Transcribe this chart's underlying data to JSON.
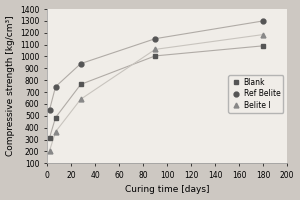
{
  "series": [
    {
      "label": "Blank",
      "x": [
        2,
        7,
        28,
        90,
        180
      ],
      "y": [
        315,
        485,
        765,
        1005,
        1090
      ],
      "line_color": "#b0aba6",
      "marker_color": "#555555",
      "marker": "s",
      "linewidth": 0.8,
      "markersize": 3.5
    },
    {
      "label": "Ref Belite",
      "x": [
        2,
        7,
        28,
        90,
        180
      ],
      "y": [
        550,
        745,
        940,
        1150,
        1300
      ],
      "line_color": "#b0aba6",
      "marker_color": "#555555",
      "marker": "o",
      "linewidth": 0.8,
      "markersize": 3.5
    },
    {
      "label": "Belite I",
      "x": [
        2,
        7,
        28,
        90,
        180
      ],
      "y": [
        205,
        365,
        640,
        1060,
        1185
      ],
      "line_color": "#c8c4be",
      "marker_color": "#888888",
      "marker": "^",
      "linewidth": 0.8,
      "markersize": 3.5
    }
  ],
  "xlabel": "Curing time [days]",
  "ylabel": "Compressive strength [kg/cm³]",
  "xlim": [
    0,
    200
  ],
  "ylim": [
    100,
    1400
  ],
  "xticks": [
    0,
    20,
    40,
    60,
    80,
    100,
    120,
    140,
    160,
    180,
    200
  ],
  "yticks": [
    100,
    200,
    300,
    400,
    500,
    600,
    700,
    800,
    900,
    1000,
    1100,
    1200,
    1300,
    1400
  ],
  "background_color": "#cdc8c2",
  "plot_bg_color": "#f0ede8",
  "legend_loc": "center right",
  "label_fontsize": 6.5,
  "tick_fontsize": 5.5,
  "legend_fontsize": 5.5
}
